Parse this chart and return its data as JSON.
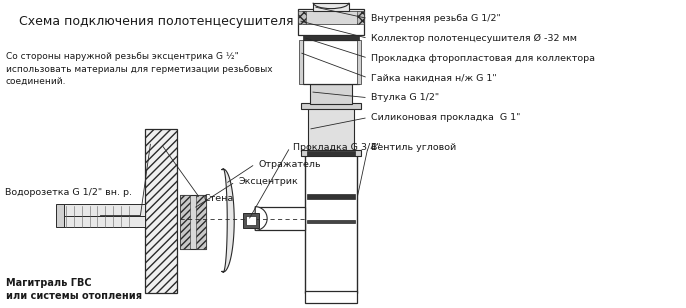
{
  "title": "Схема подключения полотенцесушителя",
  "bg_color": "#ffffff",
  "line_color": "#2a2a2a",
  "text_color": "#1a1a1a",
  "note_text": "Со стороны наружной резьбы эксцентрика G ½\"\nиспользовать материалы для герметизации резьбовых\nсоединений.",
  "right_labels": [
    "Внутренняя резьба G 1/2\"",
    "Коллектор полотенцесушителя Ø -32 мм",
    "Прокладка фторопластовая для коллектора",
    "Гайка накидная н/ж G 1\"",
    "Втулка G 1/2\"",
    "Силиконовая прокладка  G 1\"",
    "Вентиль угловой"
  ]
}
